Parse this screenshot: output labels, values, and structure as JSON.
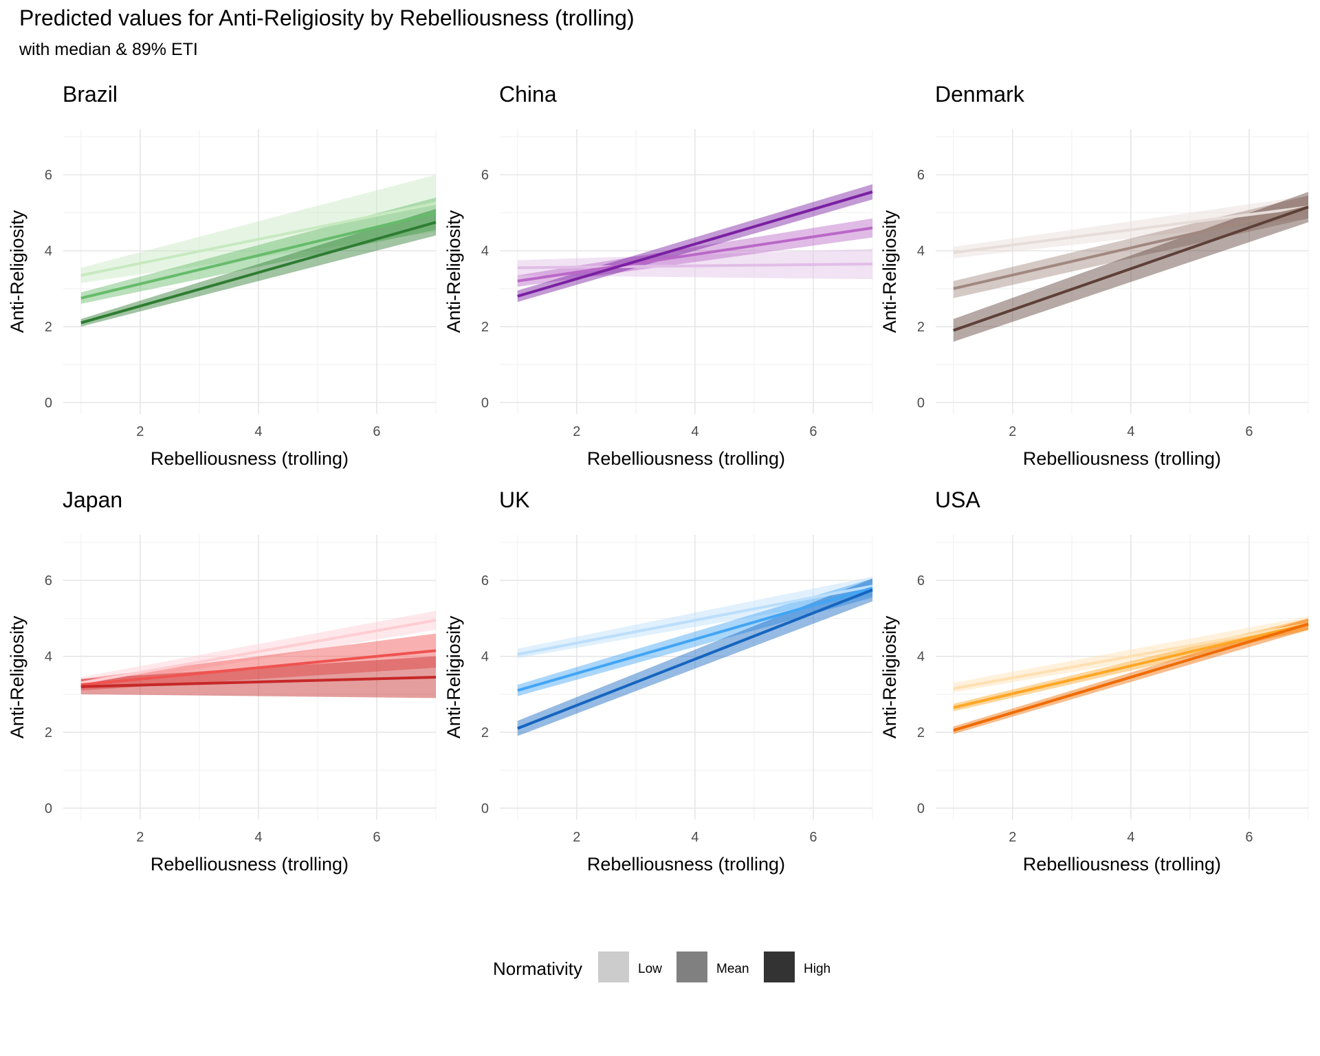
{
  "title": "Predicted values for Anti-Religiosity by Rebelliousness (trolling)",
  "subtitle": "with median & 89% ETI",
  "legend": {
    "title": "Normativity",
    "items": [
      {
        "label": "Low",
        "color": "#cccccc"
      },
      {
        "label": "Mean",
        "color": "#808080"
      },
      {
        "label": "High",
        "color": "#333333"
      }
    ]
  },
  "chart_data": {
    "type": "line",
    "xlabel": "Rebelliousness (trolling)",
    "ylabel": "Anti-Religiosity",
    "xlim": [
      0.7,
      7.0
    ],
    "ylim": [
      -0.3,
      7.2
    ],
    "x_ticks": [
      2,
      4,
      6
    ],
    "y_ticks": [
      0,
      2,
      4,
      6
    ],
    "grid": true,
    "legend_position": "bottom",
    "facets": [
      {
        "name": "Brazil",
        "colors": [
          "#c7e9c0",
          "#66bb6a",
          "#2e7d32"
        ],
        "series": [
          {
            "name": "Low",
            "x": [
              1,
              7
            ],
            "y": [
              3.35,
              5.25
            ],
            "lower": [
              3.15,
              4.5
            ],
            "upper": [
              3.55,
              6.0
            ]
          },
          {
            "name": "Mean",
            "x": [
              1,
              7
            ],
            "y": [
              2.75,
              5.0
            ],
            "lower": [
              2.6,
              4.55
            ],
            "upper": [
              2.9,
              5.4
            ]
          },
          {
            "name": "High",
            "x": [
              1,
              7
            ],
            "y": [
              2.1,
              4.75
            ],
            "lower": [
              2.0,
              4.4
            ],
            "upper": [
              2.2,
              5.1
            ]
          }
        ]
      },
      {
        "name": "China",
        "colors": [
          "#e1bee7",
          "#ba68c8",
          "#7b1fa2"
        ],
        "series": [
          {
            "name": "Low",
            "x": [
              1,
              7
            ],
            "y": [
              3.55,
              3.65
            ],
            "lower": [
              3.35,
              3.25
            ],
            "upper": [
              3.75,
              4.05
            ]
          },
          {
            "name": "Mean",
            "x": [
              1,
              7
            ],
            "y": [
              3.2,
              4.6
            ],
            "lower": [
              3.05,
              4.35
            ],
            "upper": [
              3.35,
              4.85
            ]
          },
          {
            "name": "High",
            "x": [
              1,
              7
            ],
            "y": [
              2.8,
              5.55
            ],
            "lower": [
              2.65,
              5.35
            ],
            "upper": [
              2.95,
              5.75
            ]
          }
        ]
      },
      {
        "name": "Denmark",
        "colors": [
          "#e6dcd8",
          "#a1887f",
          "#5d4037"
        ],
        "series": [
          {
            "name": "Low",
            "x": [
              1,
              7
            ],
            "y": [
              3.95,
              5.15
            ],
            "lower": [
              3.8,
              4.85
            ],
            "upper": [
              4.1,
              5.45
            ]
          },
          {
            "name": "Mean",
            "x": [
              1,
              7
            ],
            "y": [
              3.0,
              5.15
            ],
            "lower": [
              2.75,
              4.85
            ],
            "upper": [
              3.2,
              5.45
            ]
          },
          {
            "name": "High",
            "x": [
              1,
              7
            ],
            "y": [
              1.9,
              5.15
            ],
            "lower": [
              1.6,
              4.75
            ],
            "upper": [
              2.2,
              5.55
            ]
          }
        ]
      },
      {
        "name": "Japan",
        "colors": [
          "#ffcdd2",
          "#ef5350",
          "#c62828"
        ],
        "series": [
          {
            "name": "Low",
            "x": [
              1,
              7
            ],
            "y": [
              3.3,
              4.95
            ],
            "lower": [
              3.15,
              4.7
            ],
            "upper": [
              3.45,
              5.2
            ]
          },
          {
            "name": "Mean",
            "x": [
              1,
              7
            ],
            "y": [
              3.25,
              4.15
            ],
            "lower": [
              3.1,
              3.7
            ],
            "upper": [
              3.4,
              4.6
            ]
          },
          {
            "name": "High",
            "x": [
              1,
              7
            ],
            "y": [
              3.2,
              3.45
            ],
            "lower": [
              3.0,
              2.9
            ],
            "upper": [
              3.4,
              4.0
            ]
          }
        ]
      },
      {
        "name": "UK",
        "colors": [
          "#bbdefb",
          "#42a5f5",
          "#1565c0"
        ],
        "series": [
          {
            "name": "Low",
            "x": [
              1,
              7
            ],
            "y": [
              4.05,
              5.85
            ],
            "lower": [
              3.95,
              5.6
            ],
            "upper": [
              4.2,
              6.1
            ]
          },
          {
            "name": "Mean",
            "x": [
              1,
              7
            ],
            "y": [
              3.1,
              5.8
            ],
            "lower": [
              2.95,
              5.55
            ],
            "upper": [
              3.25,
              6.05
            ]
          },
          {
            "name": "High",
            "x": [
              1,
              7
            ],
            "y": [
              2.1,
              5.75
            ],
            "lower": [
              1.9,
              5.45
            ],
            "upper": [
              2.3,
              6.05
            ]
          }
        ]
      },
      {
        "name": "USA",
        "colors": [
          "#ffe0b2",
          "#ffa726",
          "#ef6c00"
        ],
        "series": [
          {
            "name": "Low",
            "x": [
              1,
              7
            ],
            "y": [
              3.15,
              4.85
            ],
            "lower": [
              3.05,
              4.65
            ],
            "upper": [
              3.3,
              5.05
            ]
          },
          {
            "name": "Mean",
            "x": [
              1,
              7
            ],
            "y": [
              2.65,
              4.85
            ],
            "lower": [
              2.55,
              4.7
            ],
            "upper": [
              2.75,
              5.0
            ]
          },
          {
            "name": "High",
            "x": [
              1,
              7
            ],
            "y": [
              2.05,
              4.85
            ],
            "lower": [
              1.95,
              4.7
            ],
            "upper": [
              2.15,
              5.0
            ]
          }
        ]
      }
    ]
  }
}
